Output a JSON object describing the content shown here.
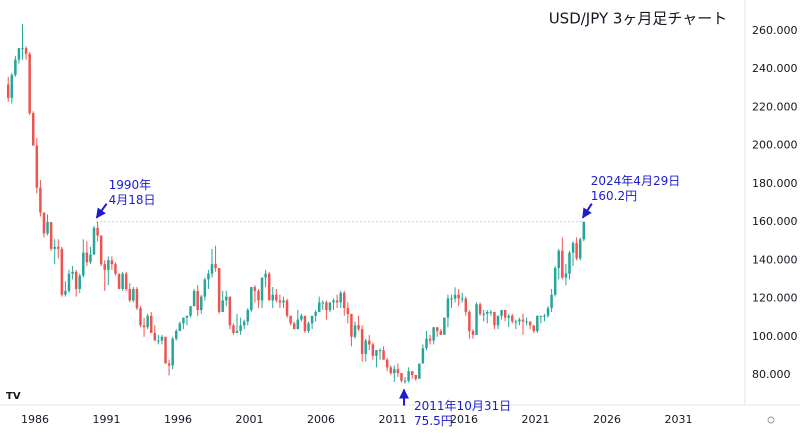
{
  "chart_data": {
    "type": "candlestick",
    "title": "USD/JPY 3ヶ月足チャート",
    "up_color": "#26a69a",
    "down_color": "#ef5350",
    "xlim": [
      1983.55,
      2035.65
    ],
    "xticks": [
      1986,
      1991,
      1996,
      2001,
      2006,
      2011,
      2016,
      2021,
      2026,
      2031
    ],
    "ylim": [
      64.3,
      276.2
    ],
    "yticks": [
      {
        "value": 80,
        "label": "80.000"
      },
      {
        "value": 100,
        "label": "100.000"
      },
      {
        "value": 120,
        "label": "120.000"
      },
      {
        "value": 140,
        "label": "140.000"
      },
      {
        "value": 160,
        "label": "160.000"
      },
      {
        "value": 180,
        "label": "180.000"
      },
      {
        "value": 200,
        "label": "200.000"
      },
      {
        "value": 220,
        "label": "220.000"
      },
      {
        "value": 240,
        "label": "240.000"
      },
      {
        "value": 260,
        "label": "260.000"
      }
    ],
    "grid": false,
    "hline": {
      "y": 160.2,
      "x": [
        1990.25,
        2024.25
      ]
    },
    "annotations": [
      {
        "lines": [
          "1990年",
          "4月18日"
        ],
        "x": 1990.25,
        "y": 160.2
      },
      {
        "lines": [
          "2024年4月29日",
          "160.2円"
        ],
        "x": 2024.25,
        "y": 160.2
      },
      {
        "lines": [
          "2011年10月31日",
          "75.5円"
        ],
        "x": 2011.75,
        "y": 75.5
      }
    ],
    "x": [
      1984,
      1984.25,
      1984.5,
      1984.75,
      1985,
      1985.25,
      1985.5,
      1985.75,
      1986,
      1986.25,
      1986.5,
      1986.75,
      1987,
      1987.25,
      1987.5,
      1987.75,
      1988,
      1988.25,
      1988.5,
      1988.75,
      1989,
      1989.25,
      1989.5,
      1989.75,
      1990,
      1990.25,
      1990.5,
      1990.75,
      1991,
      1991.25,
      1991.5,
      1991.75,
      1992,
      1992.25,
      1992.5,
      1992.75,
      1993,
      1993.25,
      1993.5,
      1993.75,
      1994,
      1994.25,
      1994.5,
      1994.75,
      1995,
      1995.25,
      1995.5,
      1995.75,
      1996,
      1996.25,
      1996.5,
      1996.75,
      1997,
      1997.25,
      1997.5,
      1997.75,
      1998,
      1998.25,
      1998.5,
      1998.75,
      1999,
      1999.25,
      1999.5,
      1999.75,
      2000,
      2000.25,
      2000.5,
      2000.75,
      2001,
      2001.25,
      2001.5,
      2001.75,
      2002,
      2002.25,
      2002.5,
      2002.75,
      2003,
      2003.25,
      2003.5,
      2003.75,
      2004,
      2004.25,
      2004.5,
      2004.75,
      2005,
      2005.25,
      2005.5,
      2005.75,
      2006,
      2006.25,
      2006.5,
      2006.75,
      2007,
      2007.25,
      2007.5,
      2007.75,
      2008,
      2008.25,
      2008.5,
      2008.75,
      2009,
      2009.25,
      2009.5,
      2009.75,
      2010,
      2010.25,
      2010.5,
      2010.75,
      2011,
      2011.25,
      2011.5,
      2011.75,
      2012,
      2012.25,
      2012.5,
      2012.75,
      2013,
      2013.25,
      2013.5,
      2013.75,
      2014,
      2014.25,
      2014.5,
      2014.75,
      2015,
      2015.25,
      2015.5,
      2015.75,
      2016,
      2016.25,
      2016.5,
      2016.75,
      2017,
      2017.25,
      2017.5,
      2017.75,
      2018,
      2018.25,
      2018.5,
      2018.75,
      2019,
      2019.25,
      2019.5,
      2019.75,
      2020,
      2020.25,
      2020.5,
      2020.75,
      2021,
      2021.25,
      2021.5,
      2021.75,
      2022,
      2022.25,
      2022.5,
      2022.75,
      2023,
      2023.25,
      2023.5,
      2023.75,
      2024,
      2024.25
    ],
    "ohlc": [
      [
        232,
        236,
        223,
        225
      ],
      [
        225,
        238,
        222,
        237
      ],
      [
        237,
        247,
        236,
        245
      ],
      [
        245,
        251,
        243,
        251
      ],
      [
        251,
        263.6,
        245,
        251
      ],
      [
        251,
        252,
        245,
        248
      ],
      [
        248,
        249,
        216,
        217
      ],
      [
        217,
        218,
        200,
        200
      ],
      [
        200,
        204,
        175,
        178
      ],
      [
        178,
        182,
        163,
        165
      ],
      [
        165,
        165,
        152,
        154
      ],
      [
        154,
        164,
        153,
        160
      ],
      [
        160,
        160,
        145,
        146
      ],
      [
        146,
        151,
        138,
        147
      ],
      [
        147,
        151,
        141,
        146
      ],
      [
        146,
        147,
        121,
        122
      ],
      [
        122,
        129,
        121,
        124
      ],
      [
        124,
        135,
        123,
        133
      ],
      [
        133,
        137,
        130,
        134
      ],
      [
        134,
        135,
        121,
        125
      ],
      [
        125,
        133,
        123,
        132
      ],
      [
        132,
        151,
        131,
        144
      ],
      [
        144,
        150,
        137,
        139
      ],
      [
        139,
        147,
        138,
        143
      ],
      [
        143,
        158,
        143,
        157
      ],
      [
        157,
        160.2,
        150,
        153
      ],
      [
        153,
        153,
        137,
        138
      ],
      [
        138,
        140,
        124,
        135
      ],
      [
        135,
        142,
        127,
        140
      ],
      [
        140,
        142,
        135,
        138
      ],
      [
        138,
        139,
        132,
        133
      ],
      [
        133,
        133,
        125,
        125
      ],
      [
        125,
        134,
        124,
        133
      ],
      [
        133,
        134,
        124,
        125
      ],
      [
        125,
        128,
        118,
        119
      ],
      [
        119,
        126,
        118,
        125
      ],
      [
        125,
        126,
        114,
        115
      ],
      [
        115,
        116,
        105,
        106
      ],
      [
        106,
        110,
        100,
        105
      ],
      [
        105,
        112,
        104,
        111
      ],
      [
        111,
        113,
        102,
        102
      ],
      [
        102,
        106,
        98,
        98
      ],
      [
        98,
        101,
        96,
        98
      ],
      [
        98,
        101,
        96,
        100
      ],
      [
        100,
        100,
        86,
        86
      ],
      [
        86,
        88,
        79.75,
        85
      ],
      [
        85,
        100,
        83,
        99
      ],
      [
        99,
        104,
        98,
        103
      ],
      [
        103,
        108,
        103,
        107
      ],
      [
        107,
        110,
        104,
        110
      ],
      [
        110,
        111,
        106,
        111
      ],
      [
        111,
        116,
        110,
        116
      ],
      [
        116,
        125,
        116,
        124
      ],
      [
        124,
        127,
        111,
        114
      ],
      [
        114,
        122,
        112,
        121
      ],
      [
        121,
        131,
        119,
        130
      ],
      [
        130,
        135,
        125,
        133
      ],
      [
        133,
        146,
        131,
        138
      ],
      [
        138,
        147.6,
        134,
        136
      ],
      [
        136,
        136,
        112,
        113
      ],
      [
        113,
        124,
        113,
        119
      ],
      [
        119,
        124,
        116,
        121
      ],
      [
        121,
        121,
        104,
        106
      ],
      [
        106,
        107,
        101,
        102
      ],
      [
        102,
        112,
        102,
        103
      ],
      [
        103,
        110,
        101,
        106
      ],
      [
        106,
        109,
        104,
        108
      ],
      [
        108,
        115,
        106,
        114
      ],
      [
        114,
        126,
        113,
        126
      ],
      [
        126,
        127,
        118,
        124
      ],
      [
        124,
        125,
        115,
        119
      ],
      [
        119,
        131,
        115,
        131
      ],
      [
        131,
        135,
        126,
        133
      ],
      [
        133,
        134,
        119,
        119
      ],
      [
        119,
        126,
        115,
        122
      ],
      [
        122,
        125,
        118,
        119
      ],
      [
        119,
        122,
        115,
        118
      ],
      [
        118,
        121,
        115,
        119
      ],
      [
        119,
        120,
        110,
        111
      ],
      [
        111,
        111,
        106,
        107
      ],
      [
        107,
        108,
        104,
        104
      ],
      [
        104,
        114,
        104,
        109
      ],
      [
        109,
        112,
        108,
        111
      ],
      [
        111,
        111,
        102,
        103
      ],
      [
        103,
        108,
        102,
        107
      ],
      [
        107,
        111,
        104,
        111
      ],
      [
        111,
        114,
        108,
        113
      ],
      [
        113,
        121,
        113,
        118
      ],
      [
        118,
        119,
        114,
        118
      ],
      [
        118,
        119,
        109,
        114
      ],
      [
        114,
        118,
        113,
        118
      ],
      [
        118,
        120,
        114,
        119
      ],
      [
        119,
        122,
        115,
        118
      ],
      [
        118,
        124,
        115,
        123
      ],
      [
        123,
        124,
        111,
        115
      ],
      [
        115,
        118,
        107,
        112
      ],
      [
        112,
        112,
        95,
        100
      ],
      [
        100,
        108,
        99,
        106
      ],
      [
        106,
        111,
        103,
        104
      ],
      [
        104,
        106,
        87,
        91
      ],
      [
        91,
        99,
        87,
        98
      ],
      [
        98,
        101,
        93,
        96
      ],
      [
        96,
        97,
        88,
        90
      ],
      [
        90,
        93,
        84,
        93
      ],
      [
        93,
        94,
        88,
        93
      ],
      [
        93,
        95,
        88,
        88
      ],
      [
        88,
        89,
        82,
        84
      ],
      [
        84,
        85,
        80,
        81
      ],
      [
        81,
        85,
        76.3,
        83
      ],
      [
        83,
        86,
        79,
        81
      ],
      [
        81,
        81,
        76,
        77
      ],
      [
        77,
        79,
        75.5,
        77
      ],
      [
        77,
        84,
        76,
        82
      ],
      [
        82,
        82,
        78,
        80
      ],
      [
        80,
        80,
        77,
        78
      ],
      [
        78,
        86,
        78,
        86
      ],
      [
        86,
        96,
        86,
        94
      ],
      [
        94,
        103,
        93,
        99
      ],
      [
        99,
        101,
        96,
        98
      ],
      [
        98,
        105,
        96,
        105
      ],
      [
        105,
        105,
        100,
        103
      ],
      [
        103,
        104,
        101,
        101
      ],
      [
        101,
        110,
        101,
        110
      ],
      [
        110,
        122,
        105,
        120
      ],
      [
        120,
        122,
        115,
        120
      ],
      [
        120,
        125.9,
        118,
        122
      ],
      [
        122,
        125,
        116,
        120
      ],
      [
        120,
        123,
        118,
        120
      ],
      [
        120,
        121,
        111,
        113
      ],
      [
        113,
        114,
        99,
        103
      ],
      [
        103,
        104,
        99,
        101
      ],
      [
        101,
        118,
        101,
        117
      ],
      [
        117,
        118,
        111,
        112
      ],
      [
        112,
        114,
        108,
        112
      ],
      [
        112,
        114,
        107,
        113
      ],
      [
        113,
        114,
        111,
        113
      ],
      [
        113,
        113,
        104,
        106
      ],
      [
        106,
        111,
        104,
        111
      ],
      [
        111,
        114,
        109,
        114
      ],
      [
        114,
        114,
        108,
        110
      ],
      [
        110,
        112,
        105,
        111
      ],
      [
        111,
        112,
        107,
        108
      ],
      [
        108,
        109,
        104,
        108
      ],
      [
        108,
        110,
        106,
        109
      ],
      [
        109,
        112,
        101,
        108
      ],
      [
        108,
        110,
        106,
        108
      ],
      [
        108,
        108,
        104,
        106
      ],
      [
        106,
        106,
        102,
        103
      ],
      [
        103,
        111,
        102,
        111
      ],
      [
        111,
        111,
        107,
        111
      ],
      [
        111,
        112,
        108,
        111
      ],
      [
        111,
        116,
        110,
        115
      ],
      [
        115,
        125,
        113,
        122
      ],
      [
        122,
        137,
        121,
        136
      ],
      [
        136,
        146,
        130,
        145
      ],
      [
        145,
        151.9,
        130,
        131
      ],
      [
        131,
        138,
        127,
        133
      ],
      [
        133,
        145,
        130,
        144
      ],
      [
        144,
        150,
        137,
        149
      ],
      [
        149,
        152,
        140,
        141
      ],
      [
        141,
        152,
        140,
        151
      ],
      [
        151,
        160.2,
        150,
        160.2
      ]
    ]
  }
}
